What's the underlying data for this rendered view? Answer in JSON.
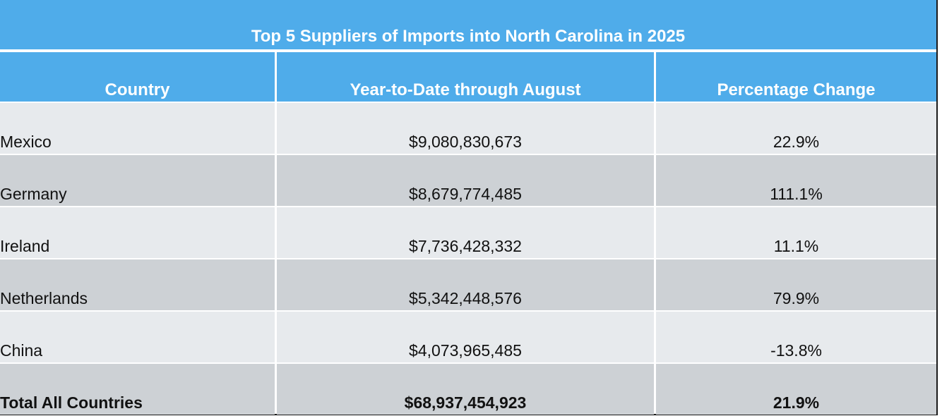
{
  "table": {
    "title": "Top 5 Suppliers of Imports into North Carolina in 2025",
    "headers": [
      "Country",
      "Year-to-Date through August",
      "Percentage Change"
    ],
    "rows": [
      {
        "country": "Mexico",
        "ytd": "$9,080,830,673",
        "change": "22.9%"
      },
      {
        "country": "Germany",
        "ytd": "$8,679,774,485",
        "change": "111.1%"
      },
      {
        "country": "Ireland",
        "ytd": "$7,736,428,332",
        "change": "11.1%"
      },
      {
        "country": "Netherlands",
        "ytd": "$5,342,448,576",
        "change": "79.9%"
      },
      {
        "country": "China",
        "ytd": "$4,073,965,485",
        "change": "-13.8%"
      },
      {
        "country": "Total All Countries",
        "ytd": "$68,937,454,923",
        "change": "21.9%"
      }
    ],
    "colors": {
      "header": "#4facea",
      "row_light": "#e7eaed",
      "row_dark": "#cdd1d5"
    }
  }
}
